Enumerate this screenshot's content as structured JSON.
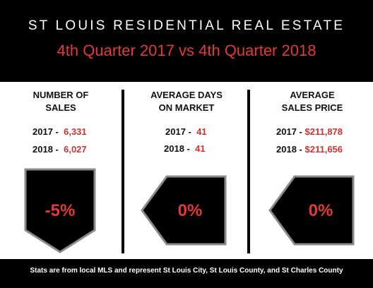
{
  "header": {
    "title": "ST LOUIS RESIDENTIAL REAL ESTATE",
    "subtitle": "4th Quarter 2017 vs 4th Quarter 2018"
  },
  "columns": [
    {
      "heading_line1": "NUMBER OF",
      "heading_line2": "SALES",
      "rows": [
        {
          "label": "2017 -",
          "value": "6,331"
        },
        {
          "label": "2018 -",
          "value": "6,027"
        }
      ],
      "change": "-5%",
      "badge_shape": "pentagon-down"
    },
    {
      "heading_line1": "AVERAGE DAYS",
      "heading_line2": "ON MARKET",
      "rows": [
        {
          "label": "2017 -",
          "value": "41"
        },
        {
          "label": "2018 -",
          "value": "41"
        }
      ],
      "change": "0%",
      "badge_shape": "pentagon-left"
    },
    {
      "heading_line1": "AVERAGE",
      "heading_line2": "SALES PRICE",
      "rows": [
        {
          "label": "2017 -",
          "value": "$211,878"
        },
        {
          "label": "2018 -",
          "value": "$211,656"
        }
      ],
      "change": "0%",
      "badge_shape": "pentagon-left"
    }
  ],
  "footer": {
    "text": "Stats are from local MLS and represent St Louis City, St Louis County, and St Charles County"
  },
  "colors": {
    "accent_red": "#e53935",
    "value_red": "#d32f2f",
    "background_dark": "#000000",
    "badge_border": "#8a8a8a"
  }
}
